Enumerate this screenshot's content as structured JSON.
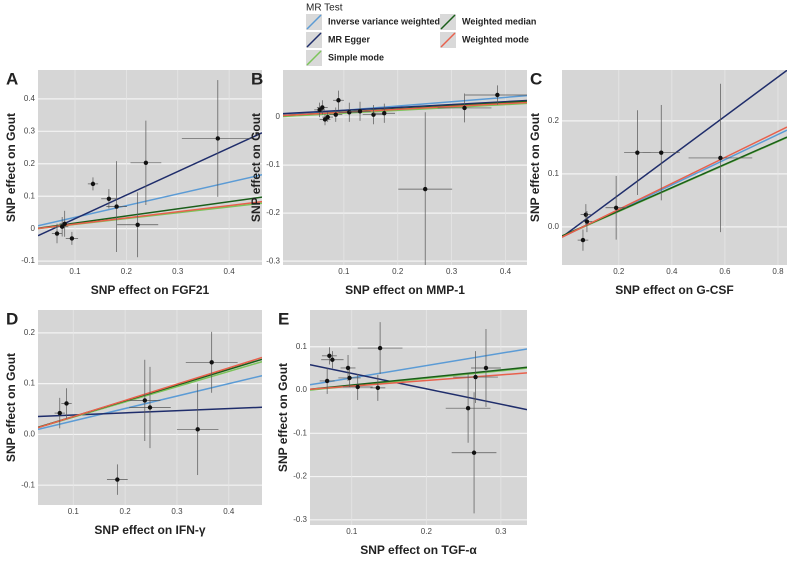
{
  "legend": {
    "title": "MR Test",
    "entries": [
      {
        "name": "Inverse variance weighted",
        "color": "#5b9bd5"
      },
      {
        "name": "MR Egger",
        "color": "#1f2d6b"
      },
      {
        "name": "Simple mode",
        "color": "#7cc45a"
      },
      {
        "name": "Weighted median",
        "color": "#1a5e1a"
      },
      {
        "name": "Weighted mode",
        "color": "#e8604c"
      }
    ]
  },
  "chart_data": [
    {
      "type": "scatter",
      "panel": "A",
      "x_label": "SNP effect on FGF21",
      "y_label": "SNP effect on Gout",
      "xlim": [
        0.028,
        0.464
      ],
      "ylim": [
        -0.112,
        0.489
      ],
      "xticks": [
        0.1,
        0.2,
        0.3,
        0.4
      ],
      "yticks": [
        -0.1,
        {
          "value": 0,
          "label": "0"
        },
        0.1,
        0.2,
        0.3,
        0.4
      ],
      "x": [
        0.065,
        0.075,
        0.08,
        0.094,
        0.135,
        0.166,
        0.181,
        0.238,
        0.222,
        0.378
      ],
      "values": [
        -0.015,
        0.006,
        0.015,
        -0.03,
        0.138,
        0.092,
        0.068,
        0.203,
        0.012,
        0.278
      ],
      "x_err": [
        0.01,
        0.012,
        0.01,
        0.012,
        0.01,
        0.015,
        0.02,
        0.03,
        0.04,
        0.07
      ],
      "y_err": [
        0.03,
        0.03,
        0.04,
        0.02,
        0.02,
        0.03,
        0.14,
        0.13,
        0.1,
        0.18
      ],
      "lines": [
        {
          "slope": 0.36,
          "intercept": -0.001
        },
        {
          "slope": 0.727,
          "intercept": -0.042
        },
        {
          "slope": 0.18,
          "intercept": -0.005
        },
        {
          "slope": 0.22,
          "intercept": -0.005
        },
        {
          "slope": 0.19,
          "intercept": -0.005
        }
      ]
    },
    {
      "type": "scatter",
      "panel": "B",
      "x_label": "SNP effect on MMP-1",
      "y_label": "SNP effect on Gout",
      "xlim": [
        -0.013,
        0.44
      ],
      "ylim": [
        -0.308,
        0.098
      ],
      "xticks": [
        0.1,
        0.2,
        0.3,
        0.4
      ],
      "yticks": [
        -0.3,
        -0.2,
        -0.1,
        0
      ],
      "x": [
        0.055,
        0.06,
        0.065,
        0.07,
        0.085,
        0.09,
        0.11,
        0.13,
        0.155,
        0.175,
        0.251,
        0.324,
        0.385
      ],
      "values": [
        0.015,
        0.02,
        -0.005,
        0.0,
        0.005,
        0.035,
        0.01,
        0.012,
        0.005,
        0.008,
        -0.15,
        0.019,
        0.046
      ],
      "x_err": [
        0.01,
        0.01,
        0.01,
        0.01,
        0.012,
        0.01,
        0.02,
        0.02,
        0.02,
        0.02,
        0.05,
        0.05,
        0.06
      ],
      "y_err": [
        0.015,
        0.015,
        0.012,
        0.01,
        0.015,
        0.02,
        0.02,
        0.02,
        0.02,
        0.02,
        0.16,
        0.03,
        0.02
      ],
      "lines": [
        {
          "slope": 0.09,
          "intercept": 0.005
        },
        {
          "slope": 0.06,
          "intercept": 0.008
        },
        {
          "slope": 0.06,
          "intercept": 0.002
        },
        {
          "slope": 0.065,
          "intercept": 0.004
        },
        {
          "slope": 0.06,
          "intercept": 0.004
        }
      ]
    },
    {
      "type": "scatter",
      "panel": "C",
      "x_label": "SNP effect on G-CSF",
      "y_label": "SNP effect on Gout",
      "xlim": [
        -0.014,
        0.834
      ],
      "ylim": [
        -0.072,
        0.296
      ],
      "xticks": [
        0.2,
        0.4,
        0.6,
        0.8
      ],
      "yticks": [
        {
          "value": 0,
          "label": "0.0"
        },
        0.1,
        0.2
      ],
      "x": [
        0.065,
        0.076,
        0.08,
        0.19,
        0.27,
        0.36,
        0.583
      ],
      "values": [
        -0.025,
        0.023,
        0.01,
        0.036,
        0.14,
        0.14,
        0.13
      ],
      "x_err": [
        0.02,
        0.02,
        0.02,
        0.04,
        0.05,
        0.07,
        0.12
      ],
      "y_err": [
        0.02,
        0.02,
        0.02,
        0.06,
        0.08,
        0.09,
        0.14
      ],
      "lines": [
        {
          "slope": 0.238,
          "intercept": -0.016
        },
        {
          "slope": 0.371,
          "intercept": -0.014
        },
        {
          "slope": 0.22,
          "intercept": -0.015
        },
        {
          "slope": 0.22,
          "intercept": -0.014
        },
        {
          "slope": 0.245,
          "intercept": -0.016
        }
      ]
    },
    {
      "type": "scatter",
      "panel": "D",
      "x_label": "SNP effect on IFN-γ",
      "y_label": "SNP effect on Gout",
      "xlim": [
        0.032,
        0.464
      ],
      "ylim": [
        -0.139,
        0.245
      ],
      "xticks": [
        0.1,
        0.2,
        0.3,
        0.4
      ],
      "yticks": [
        -0.1,
        {
          "value": 0,
          "label": "0.0"
        },
        0.1,
        0.2
      ],
      "x": [
        0.074,
        0.087,
        0.185,
        0.238,
        0.248,
        0.34,
        0.367
      ],
      "values": [
        0.042,
        0.061,
        -0.089,
        0.067,
        0.053,
        0.01,
        0.142
      ],
      "x_err": [
        0.01,
        0.01,
        0.02,
        0.03,
        0.04,
        0.04,
        0.05
      ],
      "y_err": [
        0.03,
        0.03,
        0.03,
        0.08,
        0.08,
        0.09,
        0.06
      ],
      "lines": [
        {
          "slope": 0.245,
          "intercept": 0.002
        },
        {
          "slope": 0.042,
          "intercept": 0.034
        },
        {
          "slope": 0.3,
          "intercept": 0.004
        },
        {
          "slope": 0.31,
          "intercept": 0.004
        },
        {
          "slope": 0.32,
          "intercept": 0.003
        }
      ]
    },
    {
      "type": "scatter",
      "panel": "E",
      "x_label": "SNP effect on TGF-α",
      "y_label": "SNP effect on Gout",
      "xlim": [
        0.044,
        0.335
      ],
      "ylim": [
        -0.312,
        0.185
      ],
      "xticks": [
        0.1,
        0.2,
        0.3
      ],
      "yticks": [
        -0.3,
        -0.2,
        -0.1,
        {
          "value": 0,
          "label": "0.0"
        },
        0.1
      ],
      "x": [
        0.067,
        0.07,
        0.074,
        0.095,
        0.097,
        0.108,
        0.138,
        0.135,
        0.256,
        0.264,
        0.266,
        0.28
      ],
      "values": [
        0.021,
        0.079,
        0.07,
        0.051,
        0.028,
        0.007,
        0.097,
        0.005,
        -0.042,
        -0.145,
        0.03,
        0.051
      ],
      "x_err": [
        0.01,
        0.01,
        0.015,
        0.01,
        0.015,
        0.02,
        0.03,
        0.01,
        0.03,
        0.03,
        0.03,
        0.02
      ],
      "y_err": [
        0.03,
        0.02,
        0.02,
        0.03,
        0.02,
        0.03,
        0.06,
        0.03,
        0.08,
        0.14,
        0.06,
        0.09
      ],
      "lines": [
        {
          "slope": 0.285,
          "intercept": -0.0005
        },
        {
          "slope": -0.356,
          "intercept": 0.074
        },
        {
          "slope": 0.175,
          "intercept": -0.008
        },
        {
          "slope": 0.175,
          "intercept": -0.006
        },
        {
          "slope": 0.13,
          "intercept": -0.004
        }
      ]
    }
  ]
}
